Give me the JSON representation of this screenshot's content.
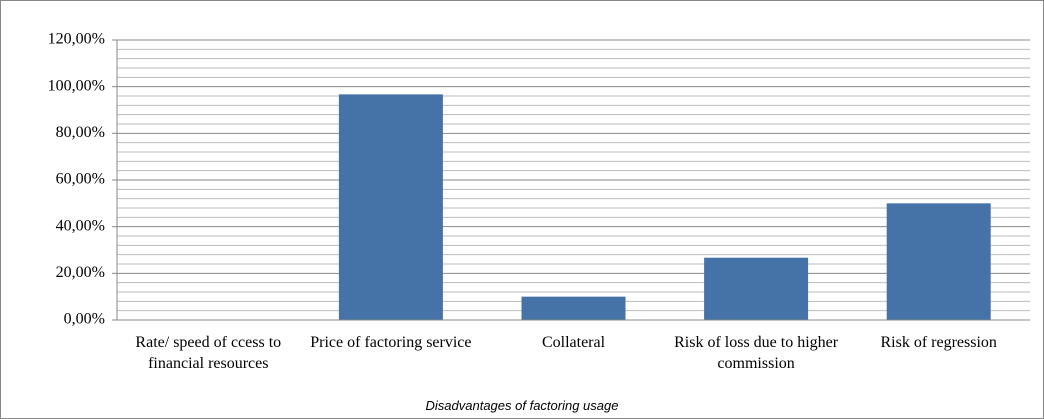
{
  "chart_data": {
    "type": "bar",
    "x_label": "Disadvantages of factoring usage",
    "categories": [
      "Rate/ speed of ccess to financial resources",
      "Price of factoring service",
      "Collateral",
      "Risk of loss due to higher commission",
      "Risk of regression"
    ],
    "values": [
      0,
      96.7,
      10,
      26.7,
      50
    ],
    "color": "#4572a7",
    "ylim": [
      0,
      120
    ],
    "yticks": [
      {
        "value": 0,
        "label": "0,00%"
      },
      {
        "value": 20,
        "label": "20,00%"
      },
      {
        "value": 40,
        "label": "40,00%"
      },
      {
        "value": 60,
        "label": "60,00%"
      },
      {
        "value": 80,
        "label": "80,00%"
      },
      {
        "value": 100,
        "label": "100,00%"
      },
      {
        "value": 120,
        "label": "120,00%"
      }
    ],
    "yticks_minor": [
      4,
      8,
      12,
      16,
      24,
      28,
      32,
      36,
      44,
      48,
      52,
      56,
      64,
      68,
      72,
      76,
      84,
      88,
      92,
      96,
      104,
      108,
      112,
      116
    ],
    "grid": true
  }
}
